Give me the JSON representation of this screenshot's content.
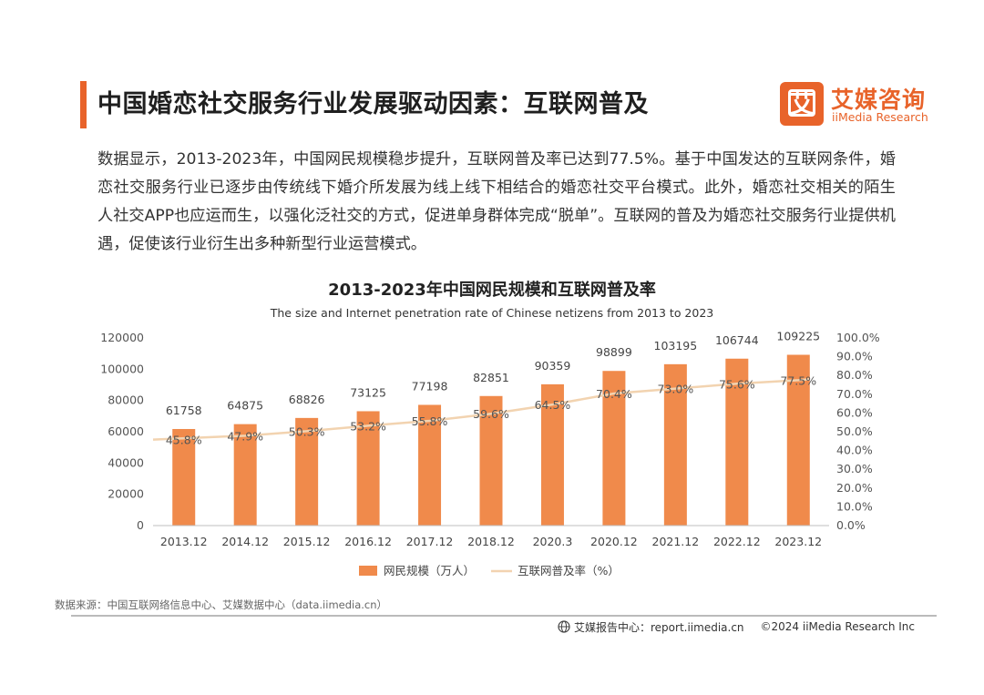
{
  "header": {
    "title": "中国婚恋社交服务行业发展驱动因素：互联网普及",
    "logo": {
      "mark_char": "艾",
      "name_cn": "艾媒咨询",
      "name_en": "iiMedia Research"
    }
  },
  "intro_text": "数据显示，2013-2023年，中国网民规模稳步提升，互联网普及率已达到77.5%。基于中国发达的互联网条件，婚恋社交服务行业已逐步由传统线下婚介所发展为线上线下相结合的婚恋社交平台模式。此外，婚恋社交相关的陌生人社交APP也应运而生，以强化泛社交的方式，促进单身群体完成“脱单”。互联网的普及为婚恋社交服务行业提供机遇，促使该行业衍生出多种新型行业运营模式。",
  "chart_data": {
    "type": "bar",
    "title": "2013-2023年中国网民规模和互联网普及率",
    "subtitle": "The size and Internet penetration rate of Chinese netizens from 2013 to 2023",
    "categories": [
      "2013.12",
      "2014.12",
      "2015.12",
      "2016.12",
      "2017.12",
      "2018.12",
      "2020.3",
      "2020.12",
      "2021.12",
      "2022.12",
      "2023.12"
    ],
    "series": [
      {
        "name": "网民规模（万人）",
        "type": "bar",
        "axis": "left",
        "color": "#f08a4b",
        "values": [
          61758,
          64875,
          68826,
          73125,
          77198,
          82851,
          90359,
          98899,
          103195,
          106744,
          109225
        ]
      },
      {
        "name": "互联网普及率（%）",
        "type": "line",
        "axis": "right",
        "color": "#f2d3b0",
        "values": [
          45.8,
          47.9,
          50.3,
          53.2,
          55.8,
          59.6,
          64.5,
          70.4,
          73.0,
          75.6,
          77.5
        ]
      }
    ],
    "data_labels_bar": [
      "61758",
      "64875",
      "68826",
      "73125",
      "77198",
      "82851",
      "90359",
      "98899",
      "103195",
      "106744",
      "109225"
    ],
    "data_labels_line": [
      "45.8%",
      "47.9%",
      "50.3%",
      "53.2%",
      "55.8%",
      "59.6%",
      "64.5%",
      "70.4%",
      "73.0%",
      "75.6%",
      "77.5%"
    ],
    "ylim_left": [
      0,
      120000
    ],
    "ylim_right": [
      0,
      100
    ],
    "yticks_left": [
      "0",
      "20000",
      "40000",
      "60000",
      "80000",
      "100000",
      "120000"
    ],
    "yticks_right": [
      "0.0%",
      "10.0%",
      "20.0%",
      "30.0%",
      "40.0%",
      "50.0%",
      "60.0%",
      "70.0%",
      "80.0%",
      "90.0%",
      "100.0%"
    ],
    "grid": false,
    "legend_position": "bottom"
  },
  "footer": {
    "source": "数据来源：中国互联网络信息中心、艾媒数据中心（data.iimedia.cn）",
    "report_center": "艾媒报告中心：report.iimedia.cn",
    "copyright": "©2024  iiMedia Research Inc"
  },
  "colors": {
    "accent": "#e8632a",
    "bar": "#f08a4b",
    "line": "#f2d3b0"
  }
}
